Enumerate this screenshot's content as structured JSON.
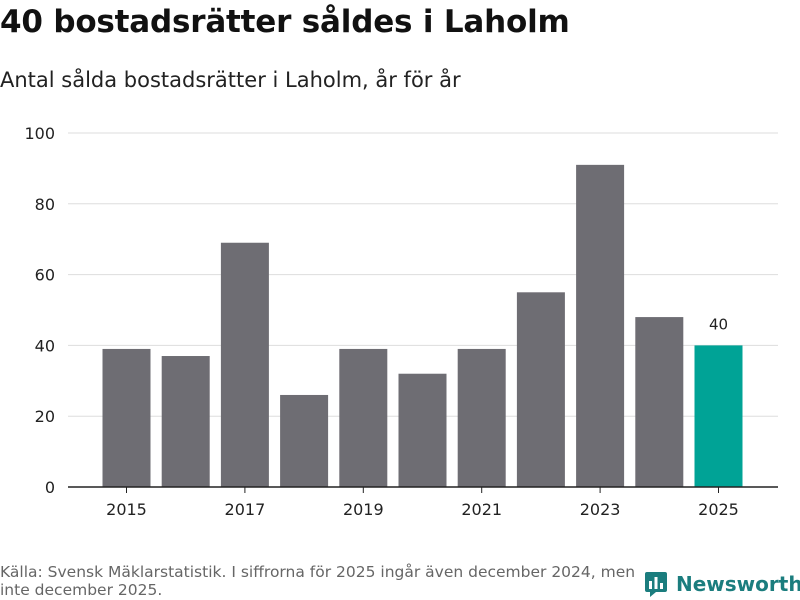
{
  "header": {
    "title": "40 bostadsrätter såldes i Laholm",
    "subtitle": "Antal sålda bostadsrätter i Laholm, år för år"
  },
  "chart_data": {
    "type": "bar",
    "categories": [
      "2015",
      "2016",
      "2017",
      "2018",
      "2019",
      "2020",
      "2021",
      "2022",
      "2023",
      "2024",
      "2025"
    ],
    "values": [
      39,
      37,
      69,
      26,
      39,
      32,
      39,
      55,
      91,
      48,
      40
    ],
    "x_tick_labels": [
      "2015",
      "2017",
      "2019",
      "2021",
      "2023",
      "2025"
    ],
    "y_ticks": [
      0,
      20,
      40,
      60,
      80,
      100
    ],
    "ylim": [
      0,
      100
    ],
    "highlight_index": 10,
    "highlight_label": "40",
    "colors": {
      "bar": "#6e6d73",
      "highlight": "#00a396",
      "grid": "#dddddd",
      "axis": "#222222"
    },
    "xlabel": "",
    "ylabel": "",
    "grid": true
  },
  "footer": {
    "source": "Källa: Svensk Mäklarstatistik. I siffrorna för 2025 ingår även december 2024, men inte december 2025."
  },
  "brand": {
    "name": "Newsworthy",
    "icon": "newsworthy-logo-icon",
    "color": "#1b7d7e"
  }
}
